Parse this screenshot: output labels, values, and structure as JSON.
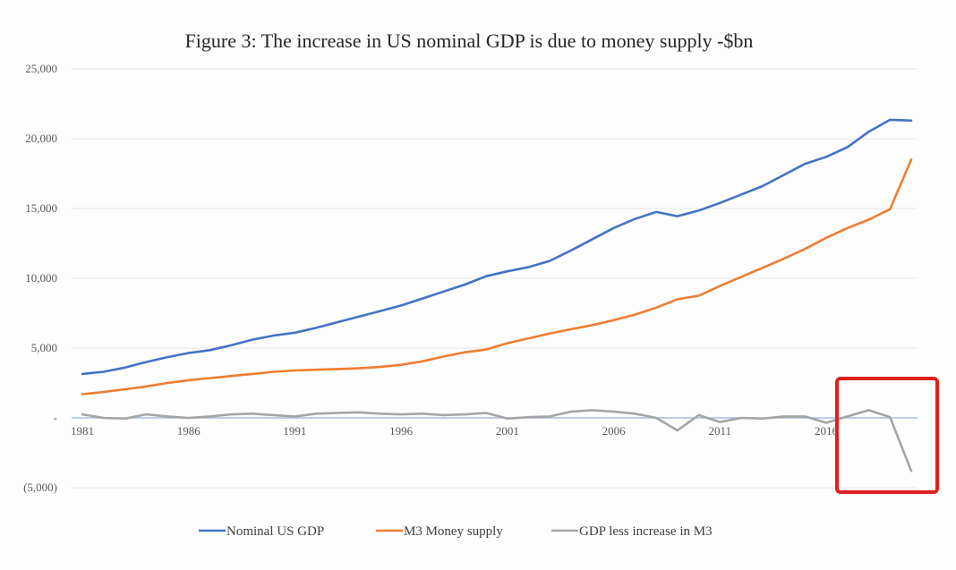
{
  "chart_data": {
    "type": "line",
    "title": "Figure 3: The increase in US nominal GDP is due to money supply -$bn",
    "x": [
      1981,
      1982,
      1983,
      1984,
      1985,
      1986,
      1987,
      1988,
      1989,
      1990,
      1991,
      1992,
      1993,
      1994,
      1995,
      1996,
      1997,
      1998,
      1999,
      2000,
      2001,
      2002,
      2003,
      2004,
      2005,
      2006,
      2007,
      2008,
      2009,
      2010,
      2011,
      2012,
      2013,
      2014,
      2015,
      2016,
      2017,
      2018,
      2019,
      2020
    ],
    "x_ticks": [
      "1981",
      "1986",
      "1991",
      "1996",
      "2001",
      "2006",
      "2011",
      "2016"
    ],
    "ylim": [
      -5000,
      25000
    ],
    "y_ticks": [
      {
        "value": 25000,
        "label": "25,000"
      },
      {
        "value": 20000,
        "label": "20,000"
      },
      {
        "value": 15000,
        "label": "15,000"
      },
      {
        "value": 10000,
        "label": "10,000"
      },
      {
        "value": 5000,
        "label": "5,000"
      },
      {
        "value": 0,
        "label": "-"
      },
      {
        "value": -5000,
        "label": "(5,000)"
      }
    ],
    "grid": true,
    "legend_position": "bottom",
    "series": [
      {
        "name": "Nominal US GDP",
        "color": "#4472c4",
        "values": [
          3150,
          3300,
          3600,
          4000,
          4350,
          4650,
          4850,
          5200,
          5600,
          5900,
          6100,
          6450,
          6850,
          7250,
          7650,
          8050,
          8550,
          9050,
          9550,
          10150,
          10500,
          10800,
          11250,
          12000,
          12800,
          13600,
          14250,
          14750,
          14450,
          14850,
          15400,
          16000,
          16600,
          17400,
          18200,
          18700,
          19400,
          20500,
          21350,
          21300
        ]
      },
      {
        "name": "M3 Money supply",
        "color": "#ed7d31",
        "values": [
          1700,
          1850,
          2050,
          2250,
          2500,
          2700,
          2850,
          3000,
          3150,
          3300,
          3400,
          3450,
          3500,
          3550,
          3650,
          3800,
          4050,
          4400,
          4700,
          4900,
          5350,
          5700,
          6050,
          6350,
          6650,
          7000,
          7400,
          7900,
          8500,
          8750,
          9450,
          10100,
          10750,
          11400,
          12100,
          12900,
          13600,
          14200,
          14950,
          18500
        ]
      },
      {
        "name": "GDP less increase in M3",
        "color": "#a5a5a5",
        "values": [
          250,
          0,
          -50,
          250,
          100,
          0,
          100,
          250,
          300,
          200,
          100,
          300,
          350,
          400,
          300,
          250,
          300,
          200,
          250,
          350,
          -50,
          50,
          100,
          450,
          550,
          450,
          300,
          0,
          -900,
          200,
          -300,
          0,
          -50,
          100,
          100,
          -350,
          100,
          550,
          50,
          -3800
        ]
      }
    ]
  },
  "annotation": {
    "color": "#e02020"
  }
}
